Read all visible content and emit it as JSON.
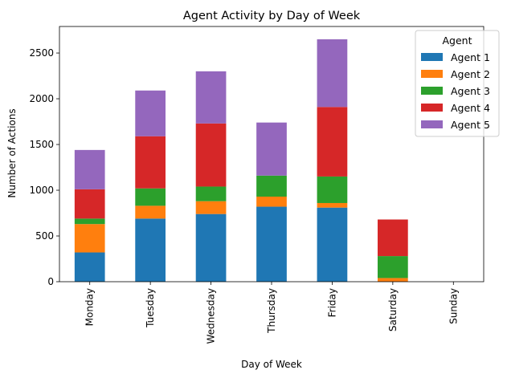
{
  "chart_data": {
    "type": "bar",
    "stacked": true,
    "title": "Agent Activity by Day of Week",
    "xlabel": "Day of Week",
    "ylabel": "Number of Actions",
    "ylim": [
      0,
      2790
    ],
    "yticks": [
      0,
      500,
      1000,
      1500,
      2000,
      2500
    ],
    "categories": [
      "Monday",
      "Tuesday",
      "Wednesday",
      "Thursday",
      "Friday",
      "Saturday",
      "Sunday"
    ],
    "legend": {
      "title": "Agent",
      "placement": "top-right"
    },
    "grid": false,
    "series": [
      {
        "name": "Agent 1",
        "color": "#1f77b4",
        "values": [
          320,
          690,
          740,
          820,
          810,
          0,
          0
        ]
      },
      {
        "name": "Agent 2",
        "color": "#ff7f0e",
        "values": [
          310,
          140,
          140,
          110,
          50,
          40,
          0
        ]
      },
      {
        "name": "Agent 3",
        "color": "#2ca02c",
        "values": [
          60,
          190,
          160,
          230,
          290,
          240,
          0
        ]
      },
      {
        "name": "Agent 4",
        "color": "#d62728",
        "values": [
          320,
          570,
          690,
          0,
          760,
          400,
          0
        ]
      },
      {
        "name": "Agent 5",
        "color": "#9467bd",
        "values": [
          430,
          500,
          570,
          580,
          740,
          0,
          0
        ]
      }
    ]
  }
}
